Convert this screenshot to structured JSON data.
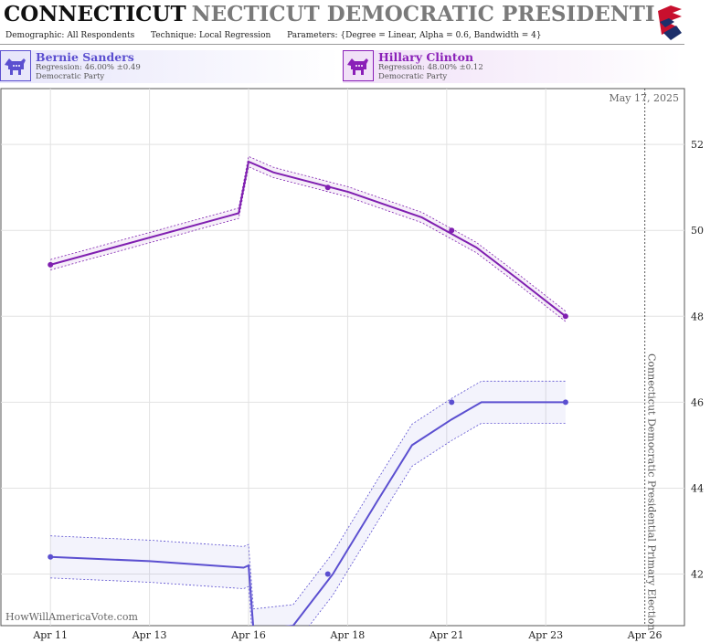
{
  "header": {
    "title_main": "CONNECTICUT",
    "title_ghost": "NECTICUT DEMOCRATIC PRESIDENTIAL PRIMAR",
    "demographic_label": "Demographic:",
    "demographic_value": "All Respondents",
    "technique_label": "Technique:",
    "technique_value": "Local Regression",
    "parameters_label": "Parameters:",
    "parameters_value": "{Degree = Linear, Alpha = 0.6, Bandwidth = 4}"
  },
  "candidates": [
    {
      "name": "Bernie Sanders",
      "regression": "Regression: 46.00% ±0.49",
      "party": "Democratic Party",
      "color": "#5b4fd0"
    },
    {
      "name": "Hillary Clinton",
      "regression": "Regression: 48.00% ±0.12",
      "party": "Democratic Party",
      "color": "#8a1fb8"
    }
  ],
  "chart_data": {
    "type": "line",
    "date_label": "May 17, 2025",
    "election_label": "Connecticut Democratic Presidential Primary Election",
    "watermark": "HowWillAmericaVote.com",
    "x_ticks": [
      "Apr 11",
      "Apr 13",
      "Apr 16",
      "Apr 18",
      "Apr 21",
      "Apr 23",
      "Apr 26"
    ],
    "x_tick_days": [
      11,
      13,
      15,
      17,
      19,
      21,
      23
    ],
    "election_day": 23,
    "xlim": [
      10.0,
      23.8
    ],
    "y_ticks": [
      42,
      44,
      46,
      48,
      50,
      52
    ],
    "ylim": [
      40.8,
      53.3
    ],
    "grid": true,
    "series": [
      {
        "name": "Hillary Clinton",
        "color": "#7f1fb0",
        "points": [
          [
            11,
            49.2
          ],
          [
            16.6,
            51.0
          ],
          [
            19.1,
            50.0
          ],
          [
            21.4,
            48.0
          ]
        ],
        "fit": [
          [
            11,
            49.2
          ],
          [
            14.8,
            50.4
          ],
          [
            15.0,
            51.6
          ],
          [
            15.5,
            51.35
          ],
          [
            17,
            50.9
          ],
          [
            18.5,
            50.3
          ],
          [
            19.6,
            49.6
          ],
          [
            20.4,
            48.9
          ],
          [
            21.4,
            48.0
          ]
        ],
        "band": 0.12
      },
      {
        "name": "Bernie Sanders",
        "color": "#5b4fd0",
        "points": [
          [
            11,
            42.4
          ],
          [
            16.6,
            42.0
          ],
          [
            19.1,
            46.0
          ],
          [
            21.4,
            46.0
          ]
        ],
        "fit": [
          [
            11,
            42.4
          ],
          [
            13,
            42.3
          ],
          [
            14.9,
            42.15
          ],
          [
            15.0,
            42.2
          ],
          [
            15.1,
            40.7
          ],
          [
            15.9,
            40.8
          ],
          [
            16.7,
            42.0
          ],
          [
            17.6,
            43.7
          ],
          [
            18.3,
            45.0
          ],
          [
            19.1,
            45.6
          ],
          [
            19.7,
            46.0
          ],
          [
            20.5,
            46.0
          ],
          [
            21.4,
            46.0
          ]
        ],
        "band": 0.49
      }
    ]
  }
}
